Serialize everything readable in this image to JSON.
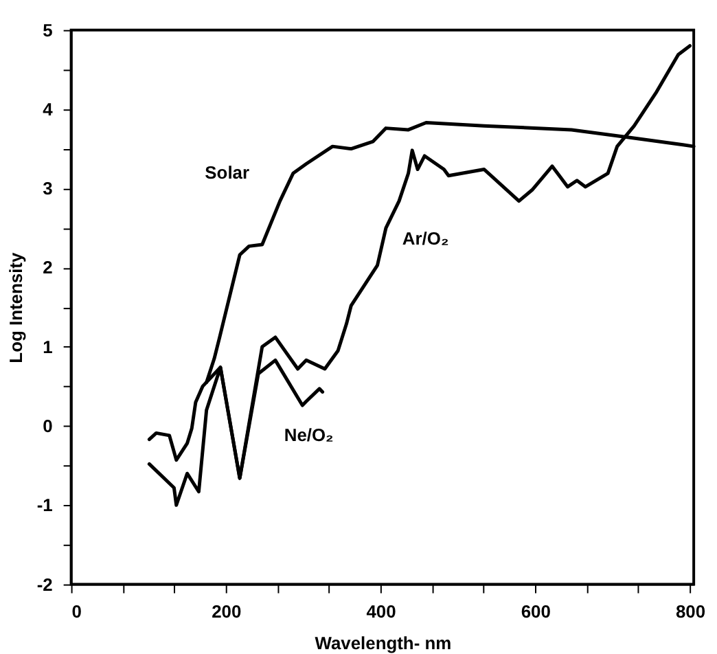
{
  "chart_data": {
    "type": "line",
    "xlabel": "Wavelength- nm",
    "ylabel": "Log Intensity",
    "xlim": [
      0,
      805
    ],
    "ylim": [
      -2,
      5
    ],
    "xticks": [
      0,
      {
        "value": 66.7,
        "label": null
      },
      {
        "value": 133.3,
        "label": null
      },
      200,
      {
        "value": 266.7,
        "label": null
      },
      {
        "value": 333.3,
        "label": null
      },
      400,
      {
        "value": 466.7,
        "label": null
      },
      {
        "value": 533.3,
        "label": null
      },
      600,
      {
        "value": 666.7,
        "label": null
      },
      {
        "value": 733.3,
        "label": null
      },
      800
    ],
    "yticks": [
      -2,
      {
        "value": -1.5,
        "label": null
      },
      -1,
      {
        "value": -0.5,
        "label": null
      },
      0,
      {
        "value": 0.5,
        "label": null
      },
      1,
      {
        "value": 1.5,
        "label": null
      },
      2,
      {
        "value": 2.5,
        "label": null
      },
      3,
      {
        "value": 3.5,
        "label": null
      },
      4,
      {
        "value": 4.5,
        "label": null
      },
      5
    ],
    "grid": false,
    "legend": false,
    "line_style": "solid",
    "marker": "none",
    "series": [
      {
        "name": "Solar",
        "color": "#000000",
        "x": [
          175,
          185,
          192,
          218,
          230,
          247,
          270,
          287,
          304,
          338,
          362,
          390,
          407,
          436,
          459,
          534,
          647,
          716,
          791,
          805
        ],
        "values": [
          0.55,
          0.85,
          1.12,
          2.16,
          2.27,
          2.29,
          2.84,
          3.19,
          3.31,
          3.53,
          3.5,
          3.59,
          3.76,
          3.74,
          3.83,
          3.79,
          3.74,
          3.65,
          3.55,
          3.53
        ]
      },
      {
        "name": "Ar/O₂",
        "color": "#000000",
        "x": [
          101,
          110,
          127,
          136,
          150,
          156,
          161,
          170,
          193,
          218,
          247,
          264,
          293,
          304,
          328,
          345,
          356,
          362,
          396,
          407,
          424,
          436,
          441,
          448,
          457,
          482,
          488,
          534,
          579,
          596,
          622,
          642,
          654,
          665,
          694,
          706,
          728,
          757,
          785,
          800
        ],
        "values": [
          -0.17,
          -0.09,
          -0.12,
          -0.43,
          -0.22,
          -0.03,
          0.3,
          0.5,
          0.74,
          -0.66,
          1.0,
          1.12,
          0.72,
          0.83,
          0.72,
          0.95,
          1.29,
          1.52,
          2.03,
          2.5,
          2.84,
          3.19,
          3.48,
          3.24,
          3.41,
          3.24,
          3.16,
          3.24,
          2.84,
          2.98,
          3.28,
          3.02,
          3.1,
          3.02,
          3.19,
          3.53,
          3.79,
          4.22,
          4.69,
          4.8
        ]
      },
      {
        "name": "Ne/O₂",
        "color": "#000000",
        "x": [
          101,
          133,
          136,
          150,
          165,
          175,
          193,
          218,
          242,
          264,
          299,
          304,
          321,
          325
        ],
        "values": [
          -0.48,
          -0.78,
          -1.0,
          -0.6,
          -0.83,
          0.2,
          0.74,
          -0.66,
          0.66,
          0.83,
          0.26,
          0.31,
          0.47,
          0.43
        ]
      }
    ]
  }
}
